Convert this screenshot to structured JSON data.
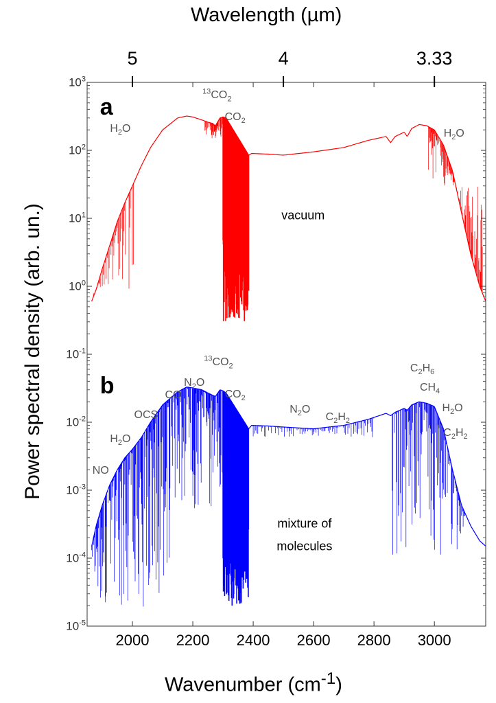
{
  "chart_data": {
    "type": "line",
    "xlabel": "Wavenumber (cm-1)",
    "xlabel_parts": [
      {
        "t": "Wavenumber (cm"
      },
      {
        "t": "-1",
        "sup": true
      },
      {
        "t": ")"
      }
    ],
    "top_xlabel": "Wavelength (µm)",
    "ylabel": "Power spectral density (arb. un.)",
    "xlim": [
      1850,
      3170
    ],
    "ylim": [
      1e-05,
      1000.0
    ],
    "yscale": "log",
    "xticks": [
      "2000",
      "2200",
      "2400",
      "2600",
      "2800",
      "3000"
    ],
    "top_ticks": [
      {
        "label": "5",
        "wavenumber": 2000
      },
      {
        "label": "4",
        "wavenumber": 2500
      },
      {
        "label": "3.33",
        "wavenumber": 3000
      }
    ],
    "yticks": [
      {
        "base": "10",
        "exp": "3"
      },
      {
        "base": "10",
        "exp": "2"
      },
      {
        "base": "10",
        "exp": "1"
      },
      {
        "base": "10",
        "exp": "0"
      },
      {
        "base": "10",
        "exp": "-1"
      },
      {
        "base": "10",
        "exp": "-2"
      },
      {
        "base": "10",
        "exp": "-3"
      },
      {
        "base": "10",
        "exp": "-4"
      },
      {
        "base": "10",
        "exp": "-5"
      }
    ],
    "grid": false,
    "series": [
      {
        "panel": "a",
        "color": "#ff0000",
        "envelope": {
          "x": [
            1865,
            1880,
            1900,
            1925,
            1950,
            1975,
            2000,
            2030,
            2060,
            2100,
            2150,
            2180,
            2200,
            2230,
            2250,
            2265,
            2275,
            2290,
            2300,
            2310,
            2385,
            2395,
            2450,
            2500,
            2600,
            2700,
            2780,
            2840,
            2855,
            2870,
            2900,
            2910,
            2925,
            2950,
            2975,
            3000,
            3030,
            3060,
            3090,
            3120,
            3150,
            3170
          ],
          "y": [
            0.6,
            0.9,
            1.8,
            4,
            9,
            17,
            30,
            60,
            110,
            200,
            300,
            320,
            310,
            280,
            260,
            250,
            230,
            300,
            310,
            300,
            85,
            90,
            88,
            85,
            95,
            110,
            140,
            160,
            130,
            160,
            185,
            160,
            210,
            240,
            230,
            200,
            120,
            50,
            12,
            3,
            1,
            0.6
          ]
        },
        "absorption_bands": [
          {
            "range": [
              1865,
              2005
            ],
            "min": 0.9,
            "density": 0.35
          },
          {
            "range": [
              2240,
              2300
            ],
            "min": 150,
            "density": 1
          },
          {
            "range": [
              2300,
              2385
            ],
            "min": 0.3,
            "density": 1.5
          },
          {
            "range": [
              2980,
              3160
            ],
            "min": 30,
            "density": 0.6
          }
        ]
      },
      {
        "panel": "b",
        "color": "#0000ff",
        "envelope": {
          "x": [
            1865,
            1880,
            1900,
            1925,
            1950,
            1975,
            2000,
            2030,
            2060,
            2100,
            2150,
            2180,
            2200,
            2230,
            2250,
            2265,
            2275,
            2290,
            2300,
            2310,
            2385,
            2395,
            2450,
            2500,
            2600,
            2700,
            2780,
            2840,
            2855,
            2870,
            2900,
            2910,
            2925,
            2950,
            2975,
            3000,
            3030,
            3060,
            3090,
            3120,
            3150,
            3170
          ],
          "y": [
            0.00015,
            0.0003,
            0.0006,
            0.0012,
            0.002,
            0.003,
            0.004,
            0.006,
            0.01,
            0.018,
            0.028,
            0.033,
            0.032,
            0.03,
            0.027,
            0.025,
            0.024,
            0.03,
            0.029,
            0.027,
            0.008,
            0.009,
            0.0088,
            0.0085,
            0.008,
            0.009,
            0.011,
            0.0135,
            0.0125,
            0.014,
            0.016,
            0.015,
            0.018,
            0.02,
            0.019,
            0.017,
            0.008,
            0.002,
            0.0006,
            0.0003,
            0.00018,
            0.00015
          ]
        },
        "absorption_bands": [
          {
            "range": [
              1865,
              2140
            ],
            "min": 1.5e-05,
            "density": 0.6
          },
          {
            "range": [
              2140,
              2300
            ],
            "min": 0.0005,
            "density": 0.6
          },
          {
            "range": [
              2300,
              2385
            ],
            "min": 2e-05,
            "density": 1.5
          },
          {
            "range": [
              2400,
              2800
            ],
            "min": 0.006,
            "density": 0.3
          },
          {
            "range": [
              2860,
              3100
            ],
            "min": 0.0001,
            "density": 0.5
          }
        ]
      }
    ],
    "annotations": [
      {
        "panel": "a",
        "x": 1960,
        "y": 200,
        "parts": [
          {
            "t": "H"
          },
          {
            "t": "2",
            "sub": true
          },
          {
            "t": "O"
          }
        ]
      },
      {
        "panel": "a",
        "x": 2280,
        "y": 650,
        "parts": [
          {
            "t": "13",
            "sup": true
          },
          {
            "t": "CO"
          },
          {
            "t": "2",
            "sub": true
          }
        ]
      },
      {
        "panel": "a",
        "x": 2340,
        "y": 300,
        "parts": [
          {
            "t": "CO"
          },
          {
            "t": "2",
            "sub": true
          }
        ]
      },
      {
        "panel": "a",
        "x": 3065,
        "y": 170,
        "parts": [
          {
            "t": "H"
          },
          {
            "t": "2",
            "sub": true
          },
          {
            "t": "O"
          }
        ]
      },
      {
        "panel": "a",
        "x": 2565,
        "y": 11,
        "parts": [
          {
            "t": "vacuum"
          }
        ]
      },
      {
        "panel": "b",
        "x": 1895,
        "y": 0.0019,
        "parts": [
          {
            "t": "NO"
          }
        ]
      },
      {
        "panel": "b",
        "x": 1960,
        "y": 0.0055,
        "parts": [
          {
            "t": "H"
          },
          {
            "t": "2",
            "sub": true
          },
          {
            "t": "O"
          }
        ]
      },
      {
        "panel": "b",
        "x": 2045,
        "y": 0.0125,
        "parts": [
          {
            "t": "OCS"
          }
        ]
      },
      {
        "panel": "b",
        "x": 2135,
        "y": 0.025,
        "parts": [
          {
            "t": "CO"
          }
        ]
      },
      {
        "panel": "b",
        "x": 2205,
        "y": 0.037,
        "parts": [
          {
            "t": "N"
          },
          {
            "t": "2",
            "sub": true
          },
          {
            "t": "O"
          }
        ]
      },
      {
        "panel": "b",
        "x": 2285,
        "y": 0.075,
        "parts": [
          {
            "t": "13",
            "sup": true
          },
          {
            "t": "CO"
          },
          {
            "t": "2",
            "sub": true
          }
        ]
      },
      {
        "panel": "b",
        "x": 2340,
        "y": 0.025,
        "parts": [
          {
            "t": "CO"
          },
          {
            "t": "2",
            "sub": true
          }
        ]
      },
      {
        "panel": "b",
        "x": 2555,
        "y": 0.015,
        "parts": [
          {
            "t": "N"
          },
          {
            "t": "2",
            "sub": true
          },
          {
            "t": "O"
          }
        ]
      },
      {
        "panel": "b",
        "x": 2680,
        "y": 0.0115,
        "parts": [
          {
            "t": "C"
          },
          {
            "t": "2",
            "sub": true
          },
          {
            "t": "H"
          },
          {
            "t": "2",
            "sub": true
          }
        ]
      },
      {
        "panel": "b",
        "x": 2960,
        "y": 0.06,
        "parts": [
          {
            "t": "C"
          },
          {
            "t": "2",
            "sub": true
          },
          {
            "t": "H"
          },
          {
            "t": "6",
            "sub": true
          }
        ]
      },
      {
        "panel": "b",
        "x": 2985,
        "y": 0.031,
        "parts": [
          {
            "t": "CH"
          },
          {
            "t": "4",
            "sub": true
          }
        ]
      },
      {
        "panel": "b",
        "x": 3060,
        "y": 0.0155,
        "parts": [
          {
            "t": "H"
          },
          {
            "t": "2",
            "sub": true
          },
          {
            "t": "O"
          }
        ]
      },
      {
        "panel": "b",
        "x": 3070,
        "y": 0.0068,
        "parts": [
          {
            "t": "C"
          },
          {
            "t": "2",
            "sub": true
          },
          {
            "t": "H"
          },
          {
            "t": "2",
            "sub": true
          }
        ]
      },
      {
        "panel": "b",
        "x": 2570,
        "y": 0.00032,
        "parts": [
          {
            "t": "mixture of"
          }
        ]
      },
      {
        "panel": "b",
        "x": 2570,
        "y": 0.00015,
        "parts": [
          {
            "t": "molecules"
          }
        ]
      }
    ],
    "panel_labels": [
      {
        "label": "a",
        "x": 1870,
        "y": 400
      },
      {
        "label": "b",
        "x": 1870,
        "y": 0.032
      }
    ]
  }
}
